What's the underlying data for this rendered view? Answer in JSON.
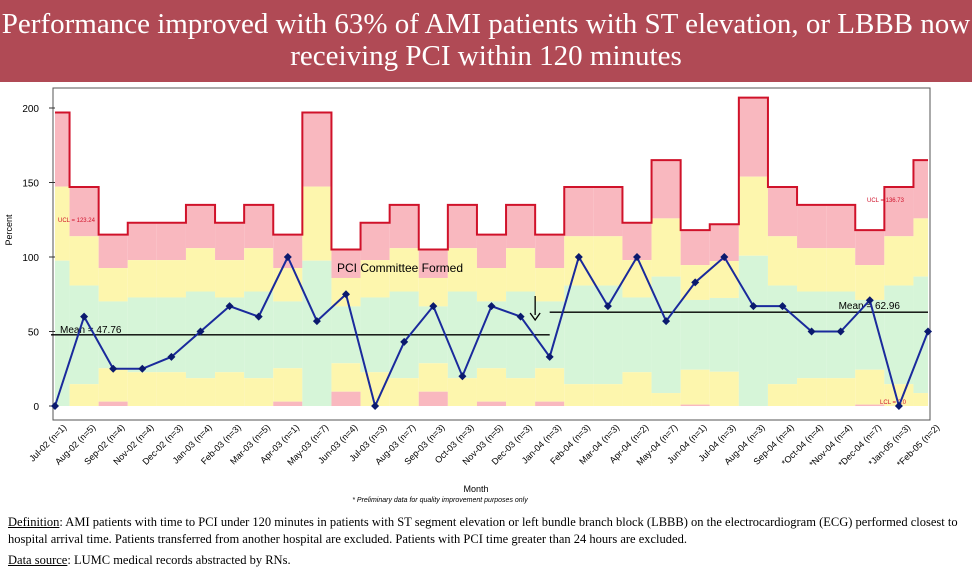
{
  "title": "Performance improved with 63% of AMI patients with ST elevation, or LBBB now receiving PCI within 120 minutes",
  "chart_data": {
    "type": "line",
    "subtype": "p-chart control chart",
    "ylabel": "Percent",
    "xlabel": "Month",
    "ylim": [
      0,
      210
    ],
    "yticks": [
      0,
      50,
      100,
      150,
      200
    ],
    "categories": [
      "Jul-02 (n=1)",
      "Aug-02 (n=5)",
      "Sep-02 (n=4)",
      "Nov-02 (n=4)",
      "Dec-02 (n=3)",
      "Jan-03 (n=4)",
      "Feb-03 (n=3)",
      "Mar-03 (n=5)",
      "Apr-03 (n=1)",
      "May-03 (n=7)",
      "Jun-03 (n=4)",
      "Jul-03 (n=3)",
      "Aug-03 (n=7)",
      "Sep-03 (n=3)",
      "Oct-03 (n=3)",
      "Nov-03 (n=5)",
      "Dec-03 (n=3)",
      "Jan-04 (n=3)",
      "Feb-04 (n=3)",
      "Mar-04 (n=3)",
      "Apr-04 (n=2)",
      "May-04 (n=7)",
      "Jun-04 (n=1)",
      "Jul-04 (n=3)",
      "Aug-04 (n=3)",
      "Sep-04 (n=4)",
      "*Oct-04 (n=4)",
      "*Nov-04 (n=4)",
      "*Dec-04 (n=7)",
      "*Jan-05 (n=3)",
      "*Feb-05 (n=2)"
    ],
    "series": [
      {
        "name": "Percent PCI within 120 minutes",
        "color": "#1a2a9c",
        "values": [
          0,
          60,
          25,
          25,
          33,
          50,
          67,
          60,
          100,
          57,
          75,
          0,
          43,
          67,
          20,
          67,
          60,
          33,
          100,
          67,
          100,
          57,
          83,
          100,
          67,
          67,
          50,
          50,
          71,
          0,
          50
        ]
      }
    ],
    "ucl": [
      197,
      147,
      115,
      123,
      123,
      135,
      123,
      135,
      115,
      197,
      105,
      123,
      135,
      105,
      135,
      115,
      135,
      115,
      147,
      147,
      123,
      165,
      118,
      122,
      207,
      147,
      135,
      135,
      118,
      147,
      165
    ],
    "mean_segments": [
      {
        "label": "Mean = 47.76",
        "value": 47.76,
        "from_index": 0,
        "to_index": 17
      },
      {
        "label": "Mean = 62.96",
        "value": 62.96,
        "from_index": 17,
        "to_index": 30
      }
    ],
    "annotations": {
      "ucl_left": "UCL = 123.24",
      "ucl_right": "UCL = 136.73",
      "lcl_right": "LCL = 0.0",
      "event": "PCI Committee Formed",
      "footnote": "* Preliminary data for quality improvement purposes only"
    },
    "grid": false
  },
  "definition": {
    "label": "Definition",
    "text": ": AMI patients with time to PCI under 120 minutes in patients with ST segment elevation or left bundle branch block (LBBB) on the electrocardiogram (ECG) performed closest to hospital arrival time.  Patients transferred from another hospital are excluded. Patients with PCI time greater than 24 hours are excluded."
  },
  "data_source": {
    "label": "Data source",
    "text": ":   LUMC medical records abstracted by RNs."
  },
  "colors": {
    "title_band": "#b04a55",
    "zone_outer": "#f9b8bf",
    "zone_middle": "#fdf6ad",
    "zone_inner": "#d6f5d8",
    "line": "#1a2a9c",
    "ucl_line": "#d0122a"
  }
}
